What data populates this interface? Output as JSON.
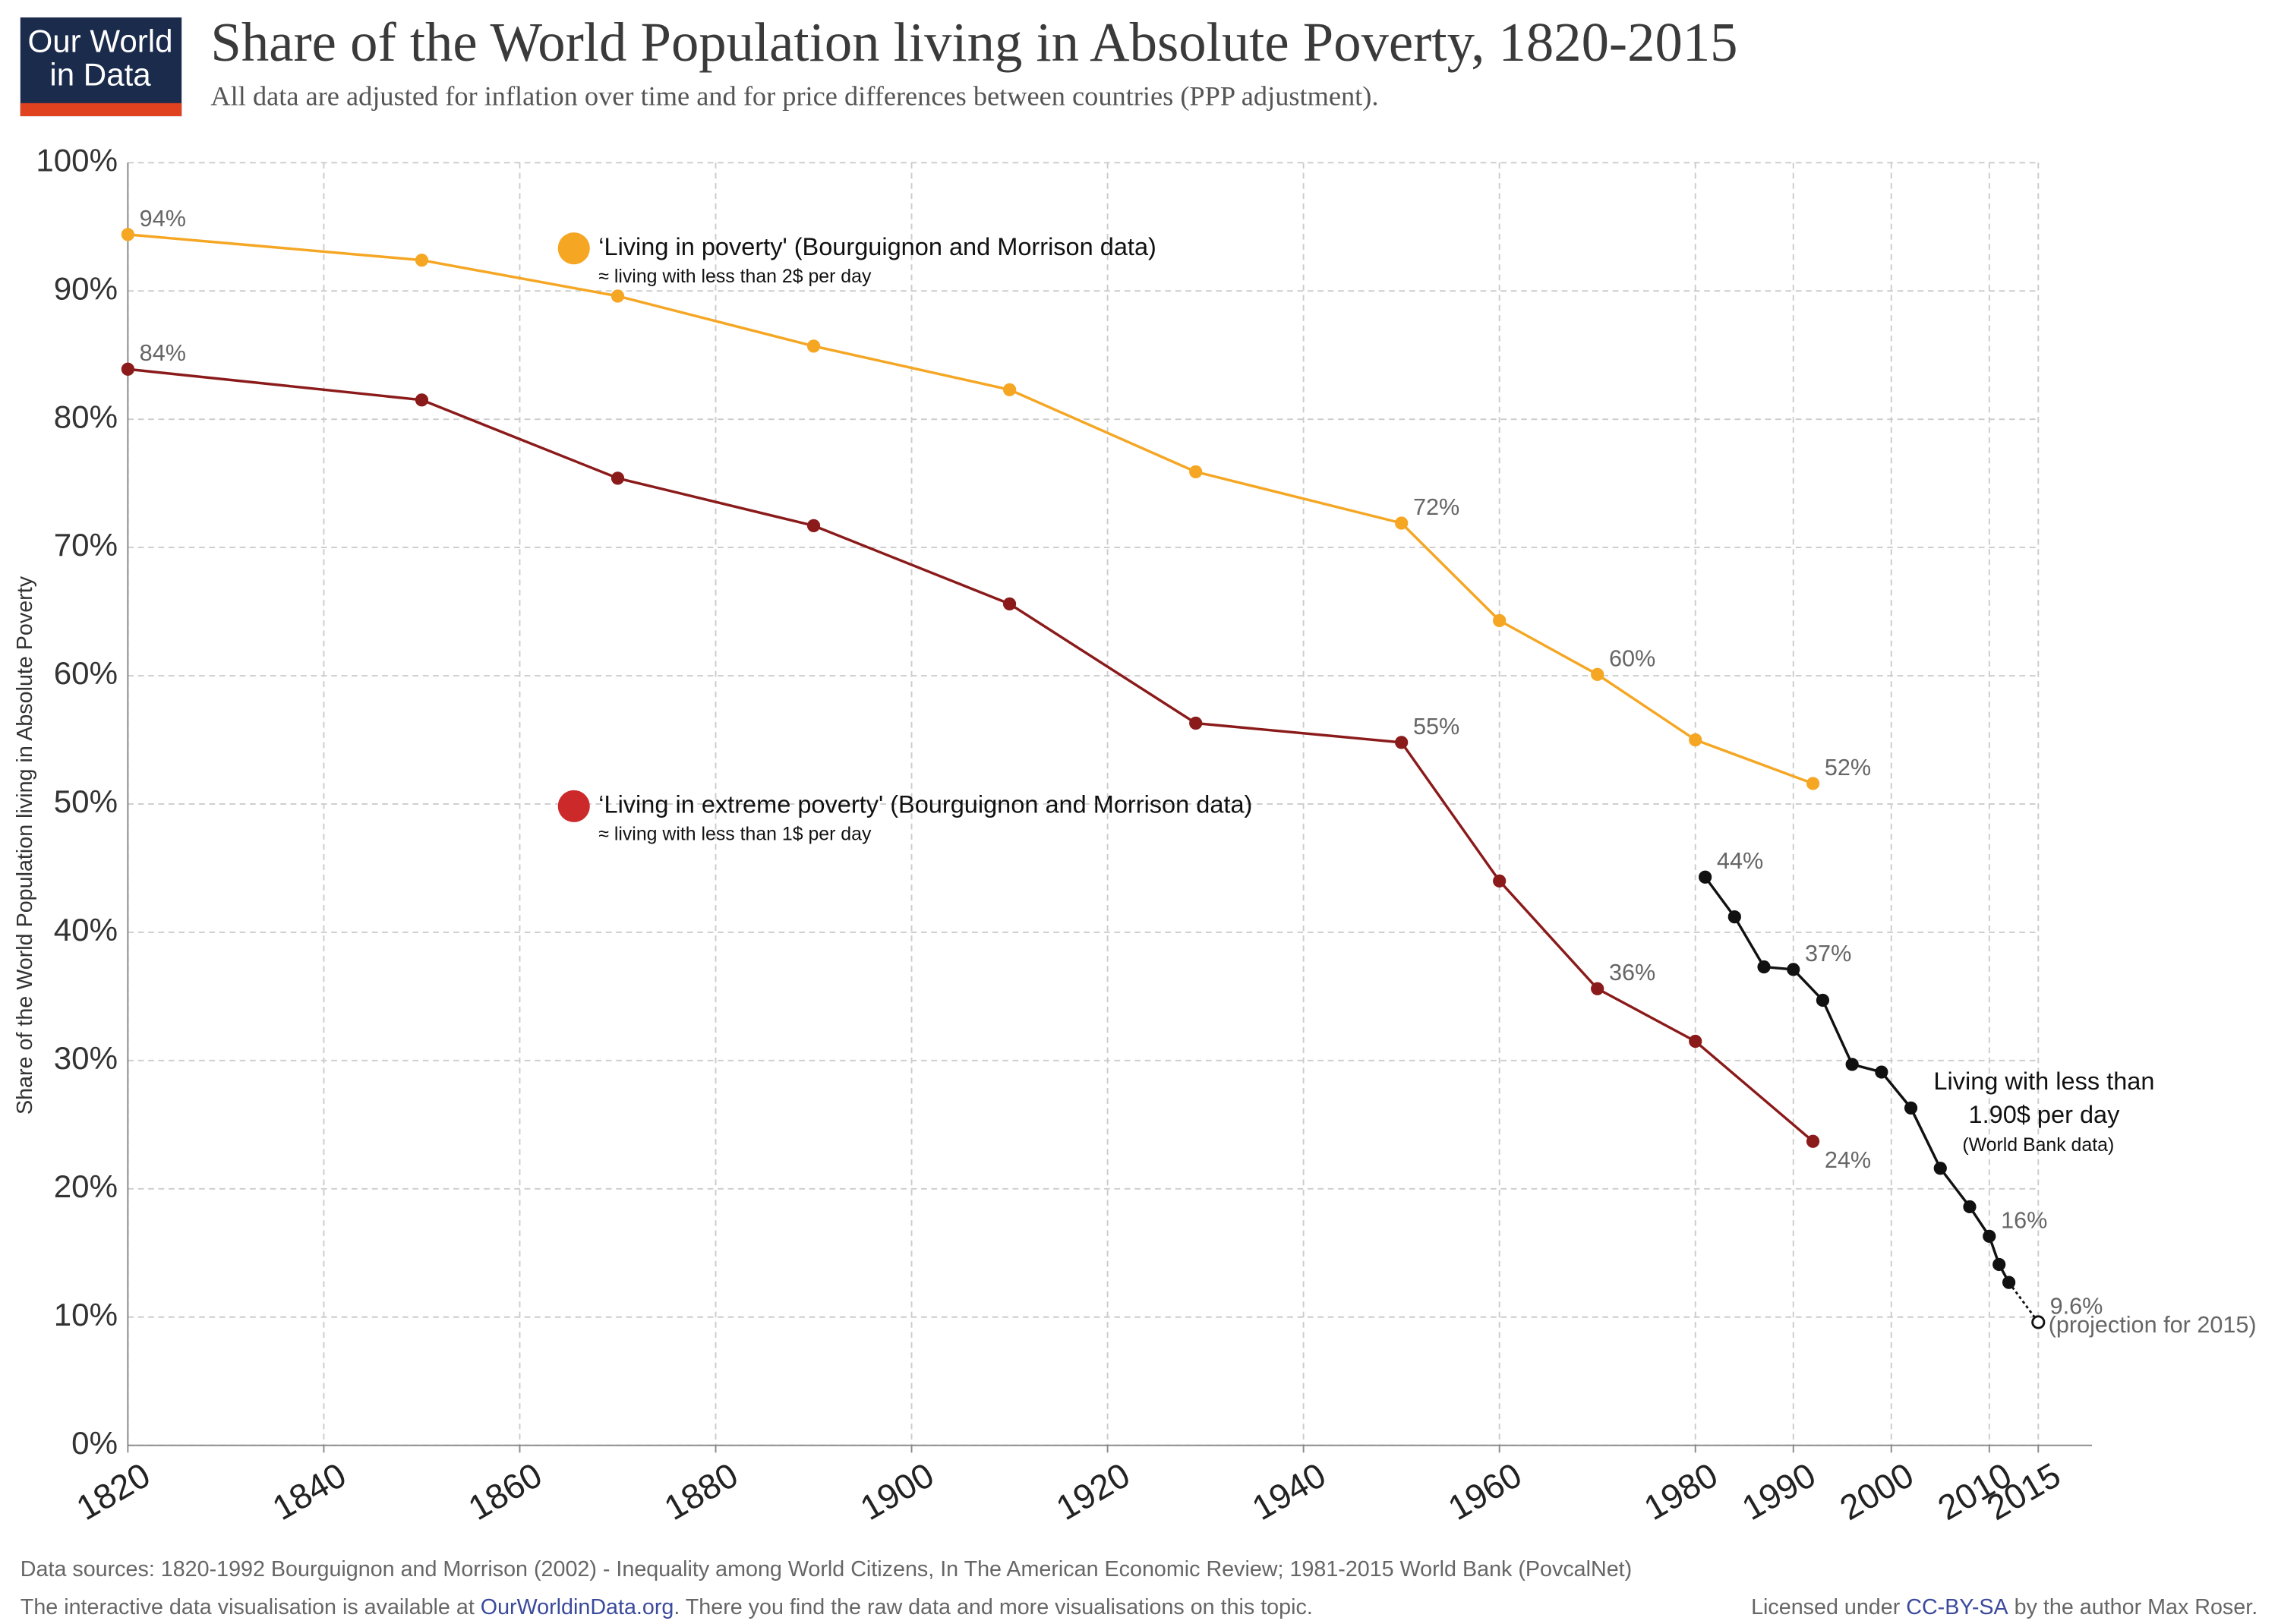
{
  "logo": {
    "line1": "Our World",
    "line2": "in Data"
  },
  "chart_data": {
    "type": "line",
    "title": "Share of the World Population living in Absolute Poverty, 1820-2015",
    "subtitle": "All data are adjusted for inflation over time and for price differences between countries (PPP adjustment).",
    "y_label": "Share of the World Population living in Absolute Poverty",
    "xlim": [
      1820,
      2015
    ],
    "ylim": [
      0,
      100
    ],
    "xticks": [
      1820,
      1840,
      1860,
      1880,
      1900,
      1920,
      1940,
      1960,
      1980,
      1990,
      2000,
      2010,
      2015
    ],
    "yticks": [
      {
        "value": 0,
        "label": "0%"
      },
      {
        "value": 10,
        "label": "10%"
      },
      {
        "value": 20,
        "label": "20%"
      },
      {
        "value": 30,
        "label": "30%"
      },
      {
        "value": 40,
        "label": "40%"
      },
      {
        "value": 50,
        "label": "50%"
      },
      {
        "value": 60,
        "label": "60%"
      },
      {
        "value": 70,
        "label": "70%"
      },
      {
        "value": 80,
        "label": "80%"
      },
      {
        "value": 90,
        "label": "90%"
      },
      {
        "value": 100,
        "label": "100%"
      }
    ],
    "grid": true,
    "series": [
      {
        "name": "‘Living in poverty' (Bourguignon and Morrison data)",
        "description": "≈ living with less than 2$ per day",
        "color": "#f5a623",
        "x": [
          1820,
          1850,
          1870,
          1890,
          1910,
          1929,
          1950,
          1960,
          1970,
          1980,
          1992
        ],
        "values": [
          94.4,
          92.4,
          89.6,
          85.7,
          82.3,
          75.9,
          71.9,
          64.3,
          60.1,
          55.0,
          51.6
        ],
        "value_labels": [
          "94%",
          null,
          null,
          null,
          null,
          null,
          "72%",
          null,
          "60%",
          null,
          "52%"
        ]
      },
      {
        "name": "‘Living in extreme poverty' (Bourguignon and Morrison data)",
        "description": "≈ living with less than 1$ per day",
        "color": "#8b1a1a",
        "x": [
          1820,
          1850,
          1870,
          1890,
          1910,
          1929,
          1950,
          1960,
          1970,
          1980,
          1992
        ],
        "values": [
          83.9,
          81.5,
          75.4,
          71.7,
          65.6,
          56.3,
          54.8,
          44.0,
          35.6,
          31.5,
          23.7
        ],
        "value_labels": [
          "84%",
          null,
          null,
          null,
          null,
          null,
          "55%",
          null,
          "36%",
          null,
          "24%"
        ]
      },
      {
        "name": "Living with less than 1.90$ per day",
        "description": "(World Bank data)",
        "color": "#111111",
        "x": [
          1981,
          1984,
          1987,
          1990,
          1993,
          1996,
          1999,
          2002,
          2005,
          2008,
          2010,
          2011,
          2012,
          2015
        ],
        "values": [
          44.3,
          41.2,
          37.3,
          37.1,
          34.7,
          29.7,
          29.1,
          26.3,
          21.6,
          18.6,
          16.3,
          14.1,
          12.7,
          9.6
        ],
        "value_labels": [
          "44%",
          null,
          null,
          "37%",
          null,
          null,
          null,
          null,
          null,
          null,
          "16%",
          null,
          null,
          "9.6%"
        ],
        "projection_note": "(projection for 2015)",
        "last_point_projected": true
      }
    ]
  },
  "footer": {
    "sources": "Data sources: 1820-1992 Bourguignon and Morrison (2002) - Inequality among World Citizens, In The American Economic Review; 1981-2015 World Bank (PovcalNet)",
    "interactive_pre": "The interactive data visualisation is available at ",
    "interactive_link": "OurWorldinData.org",
    "interactive_post": ". There you find the raw data and more visualisations on this topic.",
    "license_pre": "Licensed under ",
    "license_link": "CC-BY-SA",
    "license_post": " by the author Max Roser."
  }
}
